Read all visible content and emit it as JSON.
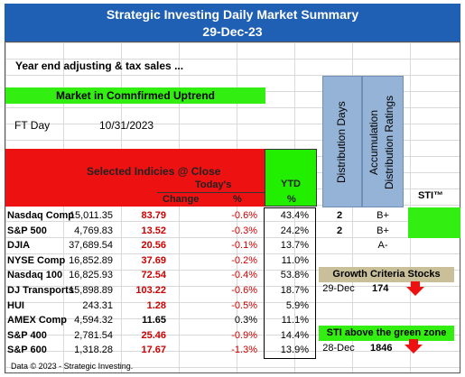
{
  "header": {
    "title": "Strategic Investing Daily Market Summary",
    "date": "29-Dec-23"
  },
  "note": "Year end adjusting & tax sales ...",
  "market_status": "Market in Comnfirmed Uptrend",
  "ft_day": {
    "label": "FT Day",
    "value": "10/31/2023"
  },
  "side_headers": {
    "distribution": "Distribution Days",
    "accumulation": "Accumulation Distribution Ratings",
    "sti": "STI™"
  },
  "table": {
    "title": "Selected Indicies @ Close",
    "todays": "Today's",
    "change": "Change",
    "pct": "%",
    "ytd": "YTD",
    "ytd_pct": "%",
    "rows": [
      {
        "name": "Nasdaq Comp",
        "close": "15,011.35",
        "change": "83.79",
        "pct": "-0.6%",
        "ytd": "43.4%",
        "dist": "2",
        "acc": "B+"
      },
      {
        "name": "S&P 500",
        "close": "4,769.83",
        "change": "13.52",
        "pct": "-0.3%",
        "ytd": "24.2%",
        "dist": "2",
        "acc": "B+"
      },
      {
        "name": "DJIA",
        "close": "37,689.54",
        "change": "20.56",
        "pct": "-0.1%",
        "ytd": "13.7%",
        "dist": "",
        "acc": "A-"
      },
      {
        "name": "NYSE Comp",
        "close": "16,852.89",
        "change": "37.69",
        "pct": "-0.2%",
        "ytd": "11.0%",
        "dist": "",
        "acc": ""
      },
      {
        "name": "Nasdaq 100",
        "close": "16,825.93",
        "change": "72.54",
        "pct": "-0.4%",
        "ytd": "53.8%",
        "dist": "",
        "acc": ""
      },
      {
        "name": "DJ Transports",
        "close": "15,898.89",
        "change": "103.22",
        "pct": "-0.6%",
        "ytd": "18.7%",
        "dist": "",
        "acc": ""
      },
      {
        "name": "HUI",
        "close": "243.31",
        "change": "1.28",
        "pct": "-0.5%",
        "ytd": "5.9%",
        "dist": "",
        "acc": ""
      },
      {
        "name": "AMEX Comp",
        "close": "4,594.32",
        "change": "11.65",
        "pct": "0.3%",
        "ytd": "11.1%",
        "dist": "",
        "acc": ""
      },
      {
        "name": "S&P 400",
        "close": "2,781.54",
        "change": "25.46",
        "pct": "-0.9%",
        "ytd": "14.4%",
        "dist": "",
        "acc": ""
      },
      {
        "name": "S&P 600",
        "close": "1,318.28",
        "change": "17.67",
        "pct": "-1.3%",
        "ytd": "13.9%",
        "dist": "",
        "acc": ""
      }
    ]
  },
  "growth": {
    "title": "Growth Criteria Stocks",
    "date": "29-Dec",
    "value": "174"
  },
  "sti_zone": {
    "title": "STI above the green zone",
    "date": "28-Dec",
    "value": "1846"
  },
  "footer": "Data © 2023 -  Strategic Investing.",
  "colors": {
    "title_bg": "#1f5fb4",
    "green": "#33ee11",
    "red": "#ee1111",
    "down": "#cc0000",
    "blue_col": "#95b3d7",
    "tan": "#c9c09a"
  }
}
